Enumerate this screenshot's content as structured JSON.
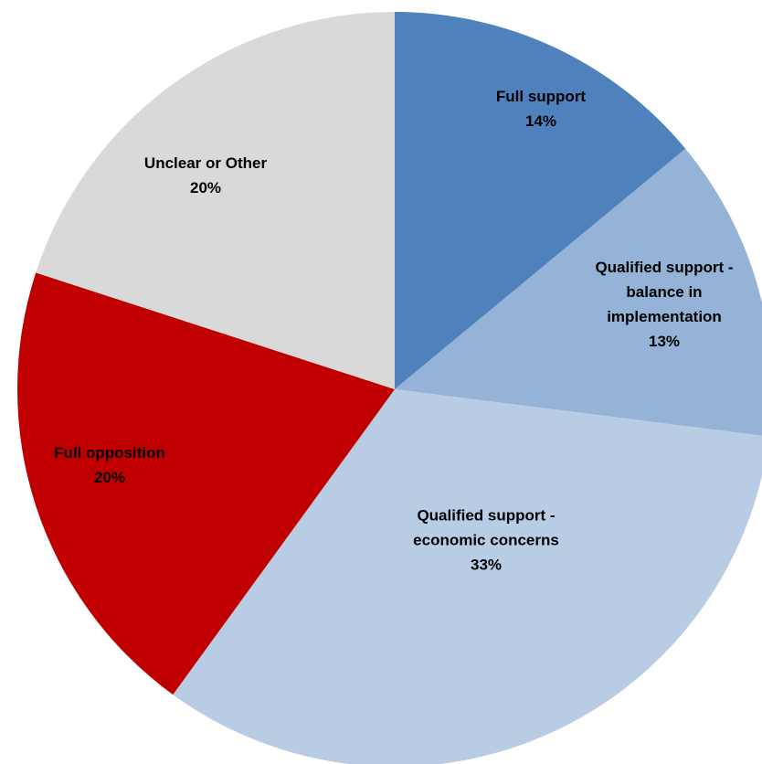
{
  "chart_data": {
    "type": "pie",
    "title": "",
    "slices": [
      {
        "label_lines": [
          "Full support"
        ],
        "value_label": "14%",
        "value": 14,
        "color": "#4f81bd"
      },
      {
        "label_lines": [
          "Qualified support -",
          "balance in",
          "implementation"
        ],
        "value_label": "13%",
        "value": 13,
        "color": "#95b3d7"
      },
      {
        "label_lines": [
          "Qualified support -",
          "economic concerns"
        ],
        "value_label": "33%",
        "value": 33,
        "color": "#b8cce4"
      },
      {
        "label_lines": [
          "Full opposition"
        ],
        "value_label": "20%",
        "value": 20,
        "color": "#c00000"
      },
      {
        "label_lines": [
          "Unclear or Other"
        ],
        "value_label": "20%",
        "value": 20,
        "color": "#d9d9d9"
      }
    ],
    "start_angle": "12 o'clock",
    "direction": "clockwise",
    "legend": "none"
  }
}
